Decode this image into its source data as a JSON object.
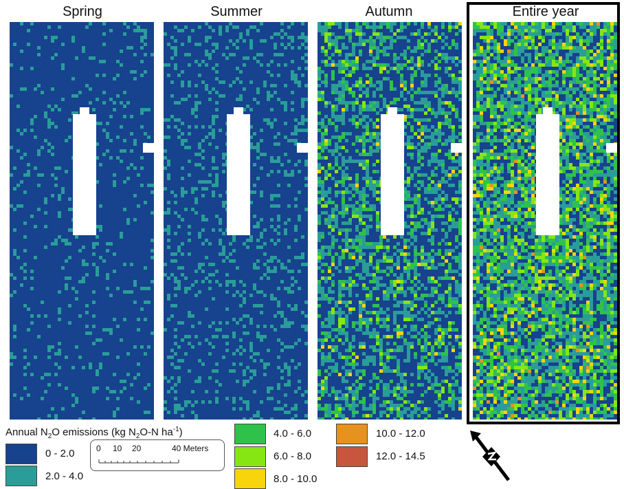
{
  "panels": [
    {
      "title": "Spring",
      "seed": 11,
      "pLight": 0.1,
      "pGreen": 0.0,
      "pLime": 0.0,
      "pYellow": 0.0,
      "pOrange": 0.0
    },
    {
      "title": "Summer",
      "seed": 23,
      "pLight": 0.18,
      "pGreen": 0.0,
      "pLime": 0.0,
      "pYellow": 0.0,
      "pOrange": 0.0
    },
    {
      "title": "Autumn",
      "seed": 37,
      "pLight": 0.28,
      "pGreen": 0.12,
      "pLime": 0.06,
      "pYellow": 0.015,
      "pOrange": 0.0
    },
    {
      "title": "Entire year",
      "seed": 53,
      "pLight": 0.3,
      "pGreen": 0.2,
      "pLime": 0.13,
      "pYellow": 0.05,
      "pOrange": 0.01
    }
  ],
  "legend": {
    "title_prefix": "Annual N",
    "title_sub1": "2",
    "title_mid": "O emissions (kg N",
    "title_sub2": "2",
    "title_mid2": "O-N ha",
    "title_sup": "-1",
    "title_suffix": ")",
    "classes": [
      {
        "label": "0 - 2.0",
        "color": "#17428e"
      },
      {
        "label": "2.0 - 4.0",
        "color": "#2a9d99"
      },
      {
        "label": "4.0 - 6.0",
        "color": "#2fc24b"
      },
      {
        "label": "6.0 - 8.0",
        "color": "#86e614"
      },
      {
        "label": "8.0 - 10.0",
        "color": "#f7d40c"
      },
      {
        "label": "10.0 - 12.0",
        "color": "#e6921e"
      },
      {
        "label": "12.0 - 14.5",
        "color": "#c8563f"
      }
    ]
  },
  "scalebar": {
    "tick_labels": [
      "0",
      "10",
      "20",
      "40 Meters"
    ]
  },
  "north_arrow_icon": "north-arrow-icon"
}
